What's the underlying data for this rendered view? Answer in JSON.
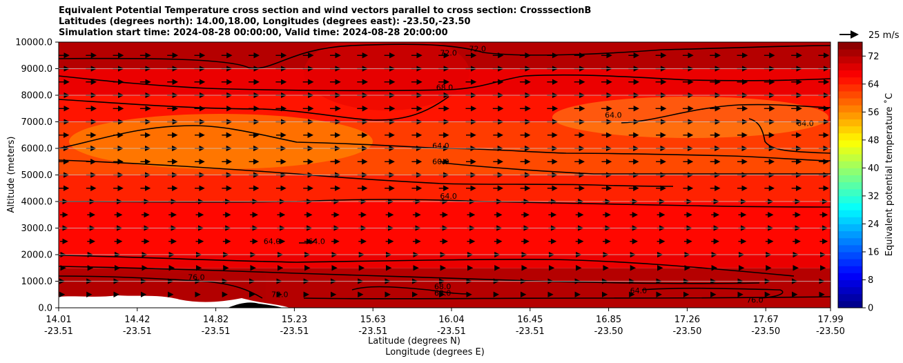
{
  "title_lines": [
    "Equivalent Potential Temperature cross section and wind vectors parallel to cross section: CrosssectionB",
    "Latitudes (degrees north): 14.00,18.00, Longitudes (degrees east): -23.50,-23.50",
    "Simulation start time: 2024-08-28 00:00:00, Valid time: 2024-08-28 20:00:00"
  ],
  "chart_data": {
    "type": "heatmap",
    "subtype": "filled contour cross section with wind vectors",
    "ylabel": "Altitude (meters)",
    "xlabel_lines": [
      "Latitude (degrees N)",
      "Longitude (degrees E)"
    ],
    "ylim": [
      0,
      10000
    ],
    "y_ticks": [
      "0.0",
      "1000.0",
      "2000.0",
      "3000.0",
      "4000.0",
      "5000.0",
      "6000.0",
      "7000.0",
      "8000.0",
      "9000.0",
      "10000.0"
    ],
    "x_ticks": [
      {
        "lat": "14.01",
        "lon": "-23.51"
      },
      {
        "lat": "14.42",
        "lon": "-23.51"
      },
      {
        "lat": "14.82",
        "lon": "-23.51"
      },
      {
        "lat": "15.23",
        "lon": "-23.51"
      },
      {
        "lat": "15.63",
        "lon": "-23.51"
      },
      {
        "lat": "16.04",
        "lon": "-23.51"
      },
      {
        "lat": "16.45",
        "lon": "-23.51"
      },
      {
        "lat": "16.85",
        "lon": "-23.50"
      },
      {
        "lat": "17.26",
        "lon": "-23.50"
      },
      {
        "lat": "17.67",
        "lon": "-23.50"
      },
      {
        "lat": "17.99",
        "lon": "-23.50"
      }
    ],
    "colorbar": {
      "label": "Equivalent potential temperature $^\\circ$C",
      "label_display": "Equivalent potential temperature ˚C",
      "range": [
        0,
        76
      ],
      "ticks": [
        "0",
        "8",
        "16",
        "24",
        "32",
        "40",
        "48",
        "56",
        "64",
        "72"
      ],
      "colormap": "jet"
    },
    "wind_key": {
      "label": "25 m/s",
      "value": 25
    },
    "contour_labels": [
      {
        "text": "72.0",
        "lat": 15.71,
        "z": 10000
      },
      {
        "text": "72.0",
        "lat": 16.02,
        "z": 9500
      },
      {
        "text": "72.0",
        "lat": 16.17,
        "z": 9650
      },
      {
        "text": "68.0",
        "lat": 16.0,
        "z": 8200
      },
      {
        "text": "64.0",
        "lat": 16.87,
        "z": 7150
      },
      {
        "text": "64.0",
        "lat": 17.86,
        "z": 6850
      },
      {
        "text": "64.0",
        "lat": 15.98,
        "z": 6000
      },
      {
        "text": "60.0",
        "lat": 15.98,
        "z": 5400
      },
      {
        "text": "64.0",
        "lat": 16.02,
        "z": 4100
      },
      {
        "text": "64.0",
        "lat": 15.11,
        "z": 2400
      },
      {
        "text": "64.0",
        "lat": 15.34,
        "z": 2400
      },
      {
        "text": "68.0",
        "lat": 15.99,
        "z": 700
      },
      {
        "text": "68.0",
        "lat": 15.99,
        "z": 450
      },
      {
        "text": "72.0",
        "lat": 15.15,
        "z": 400
      },
      {
        "text": "76.0",
        "lat": 14.72,
        "z": 1050
      },
      {
        "text": "64.0",
        "lat": 17.0,
        "z": 550
      },
      {
        "text": "76.0",
        "lat": 17.6,
        "z": 200
      }
    ],
    "theta_e_layers": [
      {
        "z": 0,
        "value": 72
      },
      {
        "z": 1500,
        "value": 68
      },
      {
        "z": 2000,
        "value": 66
      },
      {
        "z": 4000,
        "value": 64
      },
      {
        "z": 5000,
        "value": 61
      },
      {
        "z": 6000,
        "value": 62
      },
      {
        "z": 7000,
        "value": 65
      },
      {
        "z": 8000,
        "value": 68
      },
      {
        "z": 9000,
        "value": 72
      },
      {
        "z": 10000,
        "value": 74
      }
    ]
  }
}
